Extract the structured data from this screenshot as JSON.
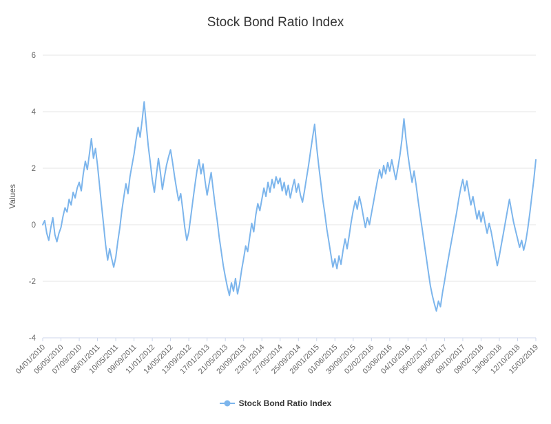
{
  "title": "Stock Bond Ratio Index",
  "colors": {
    "line": "#7cb5ec",
    "grid": "#e6e6e6",
    "axis_line": "#ccd6eb",
    "title_text": "#333333",
    "tick_text": "#666666",
    "axis_title_text": "#555555"
  },
  "legend": {
    "label": "Stock Bond Ratio Index"
  },
  "chart_data": {
    "type": "line",
    "title": "Stock Bond Ratio Index",
    "xlabel": "",
    "ylabel": "Values",
    "ylim": [
      -4,
      6
    ],
    "yticks": [
      -4,
      -2,
      0,
      2,
      4,
      6
    ],
    "grid": true,
    "legend_position": "bottom",
    "x_tick_labels": [
      "04/01/2010",
      "06/05/2010",
      "07/09/2010",
      "06/01/2011",
      "10/05/2011",
      "09/09/2011",
      "11/01/2012",
      "14/05/2012",
      "13/09/2012",
      "17/01/2013",
      "21/05/2013",
      "20/09/2013",
      "23/01/2014",
      "27/05/2014",
      "25/09/2014",
      "28/01/2015",
      "01/06/2015",
      "30/09/2015",
      "02/02/2016",
      "03/06/2016",
      "04/10/2016",
      "06/02/2017",
      "08/06/2017",
      "09/10/2017",
      "09/02/2018",
      "13/06/2018",
      "12/10/2018",
      "15/02/2019"
    ],
    "series": [
      {
        "name": "Stock Bond Ratio Index",
        "color": "#7cb5ec",
        "values": [
          0.0,
          0.15,
          -0.3,
          -0.55,
          -0.1,
          0.25,
          -0.35,
          -0.6,
          -0.3,
          -0.1,
          0.3,
          0.6,
          0.45,
          0.9,
          0.7,
          1.15,
          0.95,
          1.3,
          1.5,
          1.2,
          1.8,
          2.25,
          1.95,
          2.5,
          3.05,
          2.35,
          2.7,
          2.1,
          1.4,
          0.7,
          0.0,
          -0.7,
          -1.25,
          -0.85,
          -1.2,
          -1.5,
          -1.15,
          -0.6,
          -0.1,
          0.5,
          1.0,
          1.45,
          1.1,
          1.7,
          2.1,
          2.5,
          3.0,
          3.45,
          3.1,
          3.7,
          4.35,
          3.55,
          2.8,
          2.2,
          1.6,
          1.15,
          1.75,
          2.35,
          1.85,
          1.25,
          1.7,
          2.1,
          2.4,
          2.65,
          2.2,
          1.7,
          1.25,
          0.85,
          1.1,
          0.55,
          -0.1,
          -0.55,
          -0.25,
          0.3,
          0.85,
          1.4,
          1.9,
          2.3,
          1.8,
          2.15,
          1.55,
          1.05,
          1.45,
          1.85,
          1.25,
          0.65,
          0.15,
          -0.45,
          -0.95,
          -1.45,
          -1.85,
          -2.2,
          -2.5,
          -2.05,
          -2.35,
          -1.9,
          -2.45,
          -2.1,
          -1.6,
          -1.2,
          -0.75,
          -0.95,
          -0.45,
          0.05,
          -0.25,
          0.35,
          0.75,
          0.5,
          0.9,
          1.3,
          1.0,
          1.5,
          1.15,
          1.6,
          1.3,
          1.7,
          1.45,
          1.65,
          1.2,
          1.5,
          1.05,
          1.4,
          0.95,
          1.3,
          1.6,
          1.15,
          1.45,
          1.05,
          0.8,
          1.2,
          1.65,
          2.1,
          2.6,
          3.1,
          3.55,
          2.75,
          2.1,
          1.5,
          0.9,
          0.4,
          -0.15,
          -0.6,
          -1.05,
          -1.5,
          -1.2,
          -1.55,
          -1.1,
          -1.4,
          -0.9,
          -0.5,
          -0.85,
          -0.4,
          0.1,
          0.5,
          0.85,
          0.55,
          1.0,
          0.7,
          0.3,
          -0.1,
          0.25,
          0.0,
          0.4,
          0.8,
          1.2,
          1.6,
          1.95,
          1.65,
          2.1,
          1.8,
          2.2,
          1.9,
          2.3,
          1.95,
          1.6,
          2.0,
          2.45,
          3.0,
          3.75,
          3.05,
          2.45,
          1.95,
          1.5,
          1.9,
          1.4,
          0.85,
          0.35,
          -0.15,
          -0.65,
          -1.15,
          -1.65,
          -2.15,
          -2.5,
          -2.8,
          -3.05,
          -2.7,
          -2.9,
          -2.4,
          -2.0,
          -1.55,
          -1.15,
          -0.75,
          -0.35,
          0.05,
          0.45,
          0.9,
          1.3,
          1.6,
          1.2,
          1.55,
          1.1,
          0.7,
          1.0,
          0.6,
          0.2,
          0.5,
          0.1,
          0.45,
          0.05,
          -0.3,
          0.05,
          -0.25,
          -0.65,
          -1.05,
          -1.45,
          -1.1,
          -0.7,
          -0.3,
          0.1,
          0.5,
          0.9,
          0.5,
          0.1,
          -0.2,
          -0.5,
          -0.8,
          -0.55,
          -0.9,
          -0.6,
          -0.15,
          0.4,
          1.0,
          1.6,
          2.3
        ]
      }
    ]
  }
}
